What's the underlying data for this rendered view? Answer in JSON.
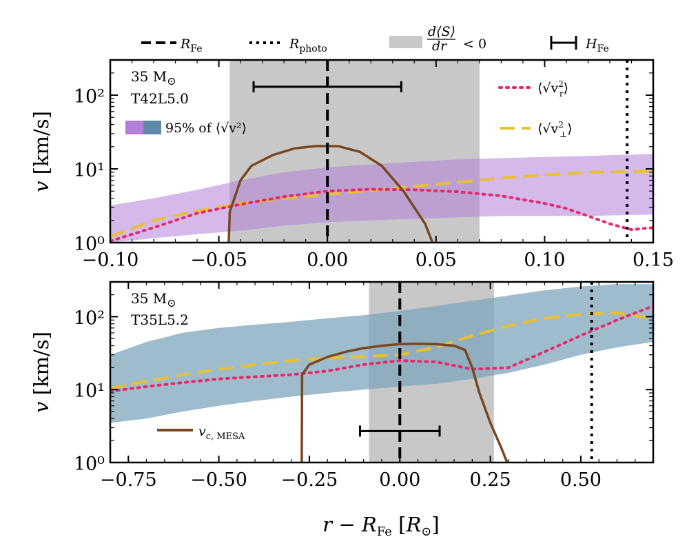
{
  "chart_data": [
    {
      "type": "line",
      "panel": "top",
      "title": "",
      "annotations": [
        "35 M⊙",
        "T42L5.0"
      ],
      "band_label": "95% of ⟨√v²⟩",
      "xlabel": "",
      "ylabel": "v [km/s]",
      "xlim": [
        -0.1,
        0.15
      ],
      "ylim": [
        1,
        300
      ],
      "xscale": "linear",
      "yscale": "log",
      "x_ticks": [
        -0.1,
        -0.05,
        0.0,
        0.05,
        0.1,
        0.15
      ],
      "x_tick_labels": [
        "−0.10",
        "−0.05",
        "0.00",
        "0.05",
        "0.10",
        "0.15"
      ],
      "y_ticks": [
        1,
        10,
        100
      ],
      "y_tick_labels": [
        "10⁰",
        "10¹",
        "10²"
      ],
      "legend_entries": [
        "⟨√v_r²⟩",
        "⟨√v_⊥²⟩"
      ],
      "legend_position": "top-right",
      "shaded_region": [
        -0.045,
        0.07
      ],
      "R_Fe": 0.0,
      "R_photo": 0.138,
      "H_Fe": {
        "center": 0.0,
        "half_width": 0.034,
        "y": 130
      },
      "band": {
        "color": "#b27fdb",
        "x": [
          -0.1,
          -0.08,
          -0.06,
          -0.04,
          -0.02,
          0.0,
          0.02,
          0.04,
          0.06,
          0.08,
          0.1,
          0.12,
          0.15
        ],
        "low": [
          1.0,
          1.15,
          1.3,
          1.45,
          1.7,
          1.9,
          2.0,
          2.1,
          2.2,
          2.3,
          2.3,
          2.3,
          2.4
        ],
        "high": [
          3.2,
          4.0,
          5.2,
          7.0,
          9.0,
          10.5,
          11.5,
          12.5,
          13.5,
          14.0,
          14.5,
          15.0,
          16.0
        ]
      },
      "series": [
        {
          "name": "v_r",
          "style": "dotted",
          "color": "#e8286e",
          "x": [
            -0.1,
            -0.08,
            -0.06,
            -0.04,
            -0.02,
            0.0,
            0.02,
            0.04,
            0.06,
            0.08,
            0.1,
            0.11,
            0.12,
            0.13,
            0.14,
            0.15
          ],
          "values": [
            1.05,
            1.6,
            2.5,
            3.3,
            4.2,
            5.0,
            5.3,
            5.2,
            4.9,
            4.3,
            3.4,
            2.9,
            2.3,
            1.8,
            1.5,
            1.6
          ]
        },
        {
          "name": "v_perp",
          "style": "dashed",
          "color": "#e8c034",
          "x": [
            -0.1,
            -0.08,
            -0.06,
            -0.04,
            -0.02,
            0.0,
            0.02,
            0.04,
            0.06,
            0.08,
            0.1,
            0.12,
            0.15
          ],
          "values": [
            1.2,
            2.0,
            2.7,
            3.4,
            4.0,
            4.5,
            5.1,
            5.8,
            6.6,
            7.5,
            8.3,
            9.0,
            9.3
          ]
        },
        {
          "name": "v_c,MESA",
          "style": "solid",
          "color": "#7a461e",
          "x": [
            -0.0455,
            -0.045,
            -0.04,
            -0.035,
            -0.025,
            -0.015,
            -0.005,
            0.005,
            0.015,
            0.025,
            0.035,
            0.045,
            0.049
          ],
          "values": [
            0.9,
            2.6,
            7.0,
            11.0,
            15.5,
            19.0,
            20.5,
            20.3,
            17.0,
            11.0,
            5.0,
            1.8,
            0.9
          ]
        }
      ]
    },
    {
      "type": "line",
      "panel": "bottom",
      "title": "",
      "annotations": [
        "35 M⊙",
        "T35L5.2"
      ],
      "xlabel": "r − R_Fe [R⊙]",
      "ylabel": "v [km/s]",
      "xlim": [
        -0.8,
        0.7
      ],
      "ylim": [
        1,
        300
      ],
      "xscale": "linear",
      "yscale": "log",
      "x_ticks": [
        -0.75,
        -0.5,
        -0.25,
        0.0,
        0.25,
        0.5
      ],
      "x_tick_labels": [
        "−0.75",
        "−0.50",
        "−0.25",
        "0.00",
        "0.25",
        "0.50"
      ],
      "y_ticks": [
        1,
        10,
        100
      ],
      "y_tick_labels": [
        "10⁰",
        "10¹",
        "10²"
      ],
      "legend_entries": [
        "v_c, MESA"
      ],
      "legend_position": "bottom-left",
      "shaded_region": [
        -0.085,
        0.26
      ],
      "R_Fe": 0.0,
      "R_photo": 0.53,
      "H_Fe": {
        "center": 0.0,
        "half_width": 0.11,
        "y": 2.7
      },
      "band": {
        "color": "#7fa5bc",
        "x": [
          -0.8,
          -0.7,
          -0.6,
          -0.5,
          -0.4,
          -0.3,
          -0.2,
          -0.1,
          0.0,
          0.1,
          0.2,
          0.3,
          0.4,
          0.5,
          0.6,
          0.7
        ],
        "low": [
          3.5,
          4.0,
          5.0,
          6.0,
          7.0,
          8.0,
          9.0,
          10.0,
          11.0,
          12.0,
          14.0,
          17.0,
          22.0,
          30.0,
          38.0,
          45.0
        ],
        "high": [
          30.0,
          45.0,
          60.0,
          70.0,
          78.0,
          85.0,
          95.0,
          105.0,
          120.0,
          140.0,
          165.0,
          195.0,
          230.0,
          260.0,
          280.0,
          280.0
        ]
      },
      "series": [
        {
          "name": "v_r",
          "style": "dotted",
          "color": "#e8286e",
          "x": [
            -0.8,
            -0.7,
            -0.6,
            -0.5,
            -0.4,
            -0.3,
            -0.2,
            -0.1,
            0.0,
            0.1,
            0.2,
            0.3,
            0.4,
            0.5,
            0.6,
            0.7
          ],
          "values": [
            9.5,
            11.0,
            12.5,
            14.0,
            15.0,
            16.0,
            18.0,
            22.0,
            25.0,
            24.0,
            19.0,
            20.0,
            33.0,
            55.0,
            90.0,
            140.0
          ]
        },
        {
          "name": "v_perp",
          "style": "dashed",
          "color": "#e8c034",
          "x": [
            -0.8,
            -0.7,
            -0.6,
            -0.5,
            -0.4,
            -0.3,
            -0.2,
            -0.1,
            0.0,
            0.1,
            0.2,
            0.3,
            0.4,
            0.5,
            0.6,
            0.7
          ],
          "values": [
            10.5,
            13.0,
            16.0,
            19.0,
            22.0,
            25.0,
            27.0,
            28.5,
            30.0,
            38.0,
            55.0,
            75.0,
            95.0,
            108.0,
            112.0,
            95.0
          ]
        },
        {
          "name": "v_c,MESA",
          "style": "solid",
          "color": "#7a461e",
          "x": [
            -0.271,
            -0.27,
            -0.25,
            -0.2,
            -0.15,
            -0.1,
            -0.05,
            0.0,
            0.05,
            0.1,
            0.15,
            0.18,
            0.2,
            0.22,
            0.25,
            0.28,
            0.3
          ],
          "values": [
            0.9,
            16.0,
            22.0,
            28.0,
            33.0,
            37.0,
            40.0,
            42.0,
            42.5,
            42.0,
            40.0,
            35.0,
            20.0,
            9.0,
            3.5,
            1.6,
            0.9
          ]
        }
      ]
    }
  ],
  "legend": {
    "r_fe_label": "R_Fe",
    "r_photo_label": "R_photo",
    "shade_label": "d⟨S⟩/dr < 0",
    "h_fe_label": "H_Fe",
    "colors": {
      "r_fe": "#000000",
      "r_photo": "#000000",
      "shade": "#c8c8c8",
      "h_fe": "#000000"
    }
  }
}
